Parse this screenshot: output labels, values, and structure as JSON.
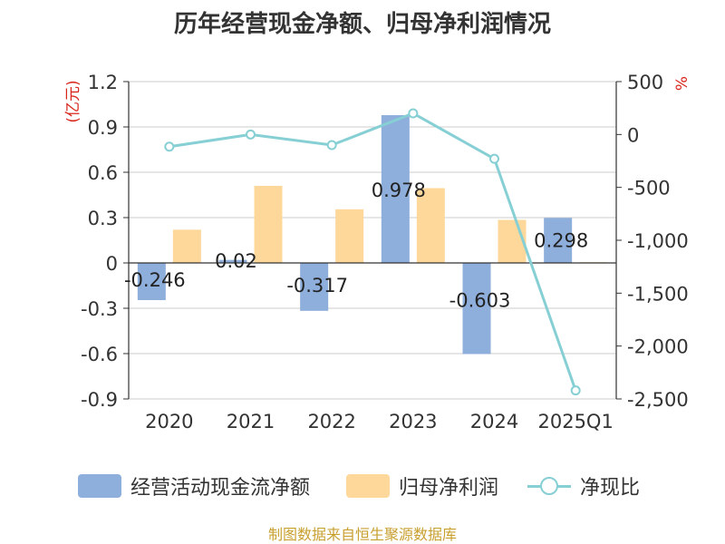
{
  "title": "历年经营现金净额、归母净利润情况",
  "source": "制图数据来自恒生聚源数据库",
  "colors": {
    "cash_flow": "#8eaedb",
    "net_profit": "#fdd89a",
    "ratio": "#86cfd4",
    "unit": "#d9261c",
    "axis": "#333333",
    "grid": "#cccccc"
  },
  "chart_data": {
    "type": "bar",
    "categories": [
      "2020",
      "2021",
      "2022",
      "2023",
      "2024",
      "2025Q1"
    ],
    "left_axis": {
      "unit_label": "(亿元)",
      "range": [
        -0.9,
        1.2
      ],
      "ticks": [
        1.2,
        0.9,
        0.6,
        0.3,
        0,
        -0.3,
        -0.6,
        -0.9
      ],
      "tick_labels": [
        "1.2",
        "0.9",
        "0.6",
        "0.3",
        "0",
        "-0.3",
        "-0.6",
        "-0.9"
      ]
    },
    "right_axis": {
      "unit_label": "%",
      "range": [
        -2500,
        500
      ],
      "ticks": [
        500,
        0,
        -500,
        -1000,
        -1500,
        -2000,
        -2500
      ],
      "tick_labels": [
        "500",
        "0",
        "-500",
        "-1,000",
        "-1,500",
        "-2,000",
        "-2,500"
      ]
    },
    "grid": true,
    "legend_position": "bottom",
    "series": [
      {
        "name": "经营活动现金流净额",
        "kind": "bar",
        "axis": "left",
        "values": [
          -0.246,
          0.02,
          -0.317,
          0.978,
          -0.603,
          0.298
        ],
        "data_labels": [
          "-0.246",
          "0.02",
          "-0.317",
          "0.978",
          "-0.603",
          "0.298"
        ]
      },
      {
        "name": "归母净利润",
        "kind": "bar",
        "axis": "left",
        "values": [
          0.22,
          0.51,
          0.355,
          0.495,
          0.285,
          0.005
        ]
      },
      {
        "name": "净现比",
        "kind": "line",
        "axis": "right",
        "values": [
          -115,
          0,
          -100,
          200,
          -230,
          -2420
        ]
      }
    ]
  }
}
